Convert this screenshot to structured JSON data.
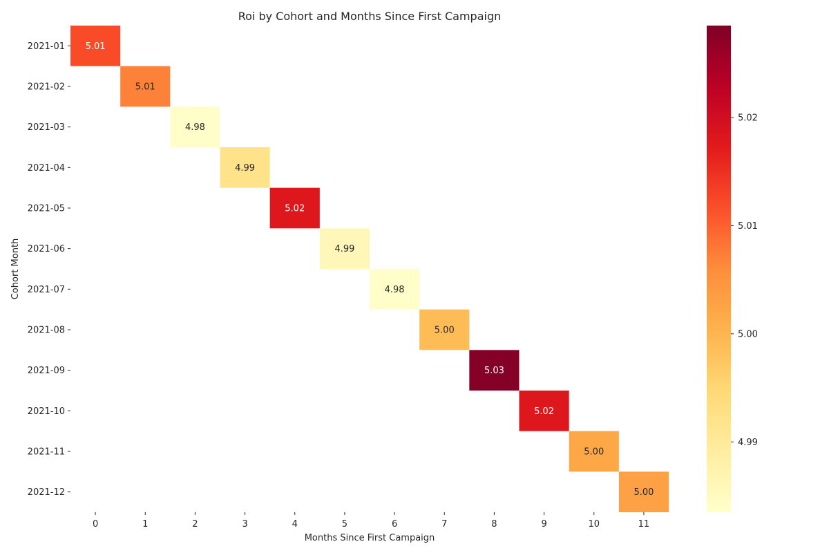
{
  "chart_data": {
    "type": "heatmap",
    "title": "Roi by Cohort and Months Since First Campaign",
    "xlabel": "Months Since First Campaign",
    "ylabel": "Cohort Month",
    "x_categories": [
      "0",
      "1",
      "2",
      "3",
      "4",
      "5",
      "6",
      "7",
      "8",
      "9",
      "10",
      "11"
    ],
    "y_categories": [
      "2021-01",
      "2021-02",
      "2021-03",
      "2021-04",
      "2021-05",
      "2021-06",
      "2021-07",
      "2021-08",
      "2021-09",
      "2021-10",
      "2021-11",
      "2021-12"
    ],
    "cells": [
      {
        "row": "2021-01",
        "col": "0",
        "value": 5.012,
        "label": "5.01"
      },
      {
        "row": "2021-02",
        "col": "1",
        "value": 5.007,
        "label": "5.01"
      },
      {
        "row": "2021-03",
        "col": "2",
        "value": 4.984,
        "label": "4.98"
      },
      {
        "row": "2021-04",
        "col": "3",
        "value": 4.992,
        "label": "4.99"
      },
      {
        "row": "2021-05",
        "col": "4",
        "value": 5.018,
        "label": "5.02"
      },
      {
        "row": "2021-06",
        "col": "5",
        "value": 4.986,
        "label": "4.99"
      },
      {
        "row": "2021-07",
        "col": "6",
        "value": 4.984,
        "label": "4.98"
      },
      {
        "row": "2021-08",
        "col": "7",
        "value": 4.999,
        "label": "5.00"
      },
      {
        "row": "2021-09",
        "col": "8",
        "value": 5.028,
        "label": "5.03"
      },
      {
        "row": "2021-10",
        "col": "9",
        "value": 5.018,
        "label": "5.02"
      },
      {
        "row": "2021-11",
        "col": "10",
        "value": 5.002,
        "label": "5.00"
      },
      {
        "row": "2021-12",
        "col": "11",
        "value": 5.003,
        "label": "5.00"
      }
    ],
    "colorbar": {
      "colormap": "YlOrRd",
      "vmin": 4.9835,
      "vmax": 5.0285,
      "ticks": [
        4.99,
        5.0,
        5.01,
        5.02
      ],
      "tick_labels": [
        "4.99",
        "5.00",
        "5.01",
        "5.02"
      ]
    },
    "grid": false
  }
}
